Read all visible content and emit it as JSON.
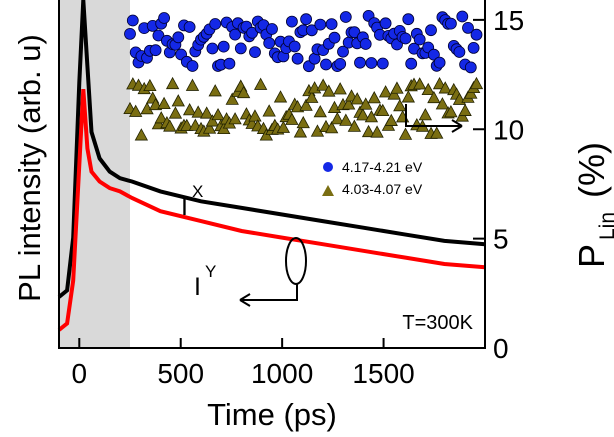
{
  "chart_data": {
    "type": "line",
    "xlabel": "Time (ps)",
    "ylabel_left": "PL intensity (arb. u)",
    "ylabel_right_main": "P",
    "ylabel_right_sub": "Lin",
    "ylabel_right_unit": "(%)",
    "xlim": [
      -100,
      2000
    ],
    "x_ticks": [
      0,
      500,
      1000,
      1500
    ],
    "right_ylim": [
      0,
      16
    ],
    "right_y_ticks": [
      0,
      5,
      10,
      15
    ],
    "excitation_window": [
      -100,
      250
    ],
    "annotation_temperature": "T=300K",
    "label_ix": "I",
    "label_ix_sup": "X",
    "label_iy": "I",
    "label_iy_sup": "Y",
    "pl_series": [
      {
        "name": "I^X",
        "color": "#000000",
        "points": [
          [
            -100,
            0.1
          ],
          [
            -60,
            0.12
          ],
          [
            -30,
            0.28
          ],
          [
            0,
            0.75
          ],
          [
            20,
            1.0
          ],
          [
            40,
            0.8
          ],
          [
            60,
            0.6
          ],
          [
            100,
            0.52
          ],
          [
            150,
            0.48
          ],
          [
            200,
            0.46
          ],
          [
            260,
            0.45
          ],
          [
            400,
            0.42
          ],
          [
            600,
            0.39
          ],
          [
            800,
            0.37
          ],
          [
            1000,
            0.35
          ],
          [
            1200,
            0.33
          ],
          [
            1400,
            0.31
          ],
          [
            1600,
            0.29
          ],
          [
            1800,
            0.27
          ],
          [
            2000,
            0.26
          ]
        ]
      },
      {
        "name": "I^Y",
        "color": "#ff0000",
        "points": [
          [
            -100,
            0.0
          ],
          [
            -60,
            0.02
          ],
          [
            -30,
            0.15
          ],
          [
            0,
            0.5
          ],
          [
            20,
            0.73
          ],
          [
            40,
            0.55
          ],
          [
            60,
            0.48
          ],
          [
            100,
            0.45
          ],
          [
            150,
            0.43
          ],
          [
            200,
            0.42
          ],
          [
            260,
            0.4
          ],
          [
            400,
            0.36
          ],
          [
            600,
            0.33
          ],
          [
            800,
            0.3
          ],
          [
            1000,
            0.28
          ],
          [
            1200,
            0.26
          ],
          [
            1400,
            0.24
          ],
          [
            1600,
            0.22
          ],
          [
            1800,
            0.2
          ],
          [
            2000,
            0.19
          ]
        ]
      }
    ],
    "plin_series": [
      {
        "name": "4.17-4.21 eV",
        "color": "#1428e6",
        "marker": "circle",
        "mean": 14.0,
        "x_start": 250,
        "x_end": 1960
      },
      {
        "name": "4.03-4.07 eV",
        "color": "#7a6e12",
        "marker": "triangle",
        "mean": 10.9,
        "x_start": 250,
        "x_end": 1960
      }
    ]
  }
}
